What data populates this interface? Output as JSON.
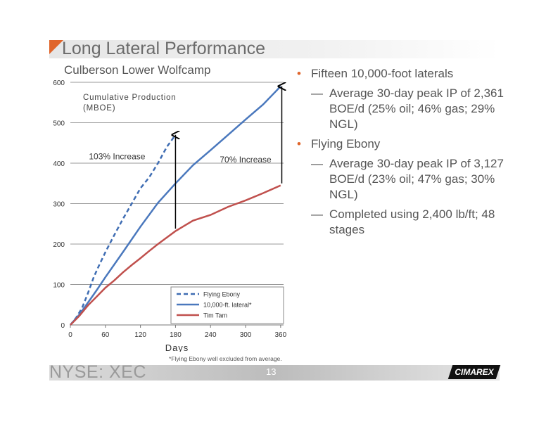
{
  "slide": {
    "title": "Long Lateral Performance",
    "subtitle": "Culberson Lower Wolfcamp",
    "ticker": "NYSE: XEC",
    "page_number": "13",
    "logo_text": "CIMAREX",
    "footnote": "*Flying Ebony well excluded from average.",
    "accent_color": "#e0652b"
  },
  "bullets": [
    {
      "text": "Fifteen 10,000-foot laterals",
      "subs": [
        "Average 30-day peak IP of 2,361 BOE/d (25% oil; 46% gas; 29% NGL)"
      ]
    },
    {
      "text": "Flying Ebony",
      "subs": [
        "Average 30-day peak IP of 3,127 BOE/d (23% oil; 47% gas; 30% NGL)",
        "Completed using 2,400 lb/ft; 48 stages"
      ]
    }
  ],
  "chart_data": {
    "type": "line",
    "ylabel": "Cumulative Production (MBOE)",
    "xlabel": "Days",
    "xlim": [
      0,
      365
    ],
    "ylim": [
      0,
      600
    ],
    "xticks": [
      0,
      60,
      120,
      180,
      240,
      300,
      360
    ],
    "yticks": [
      0,
      100,
      200,
      300,
      400,
      500,
      600
    ],
    "grid": "horizontal",
    "legend_position": "bottom-right",
    "series": [
      {
        "name": "Flying Ebony",
        "color": "#3f6db3",
        "dash": true,
        "points": [
          [
            0,
            0
          ],
          [
            10,
            18
          ],
          [
            20,
            42
          ],
          [
            30,
            78
          ],
          [
            40,
            118
          ],
          [
            50,
            150
          ],
          [
            60,
            180
          ],
          [
            75,
            222
          ],
          [
            90,
            262
          ],
          [
            105,
            300
          ],
          [
            120,
            338
          ],
          [
            135,
            365
          ],
          [
            150,
            400
          ],
          [
            165,
            440
          ],
          [
            180,
            470
          ]
        ]
      },
      {
        "name": "10,000-ft. lateral*",
        "color": "#4a78bd",
        "dash": false,
        "points": [
          [
            0,
            0
          ],
          [
            15,
            25
          ],
          [
            30,
            55
          ],
          [
            45,
            86
          ],
          [
            60,
            118
          ],
          [
            90,
            180
          ],
          [
            120,
            243
          ],
          [
            150,
            302
          ],
          [
            180,
            350
          ],
          [
            210,
            395
          ],
          [
            240,
            432
          ],
          [
            270,
            470
          ],
          [
            300,
            508
          ],
          [
            330,
            545
          ],
          [
            360,
            590
          ]
        ]
      },
      {
        "name": "Tim Tam",
        "color": "#c0504d",
        "dash": false,
        "points": [
          [
            0,
            0
          ],
          [
            15,
            22
          ],
          [
            30,
            48
          ],
          [
            45,
            70
          ],
          [
            60,
            92
          ],
          [
            75,
            110
          ],
          [
            90,
            130
          ],
          [
            105,
            148
          ],
          [
            120,
            165
          ],
          [
            135,
            183
          ],
          [
            150,
            200
          ],
          [
            165,
            216
          ],
          [
            180,
            232
          ],
          [
            195,
            245
          ],
          [
            210,
            258
          ],
          [
            240,
            272
          ],
          [
            270,
            292
          ],
          [
            300,
            308
          ],
          [
            330,
            326
          ],
          [
            360,
            345
          ]
        ]
      }
    ],
    "annotations": [
      {
        "text": "103% Increase",
        "x": 80,
        "y": 410
      },
      {
        "text": "70% Increase",
        "x": 300,
        "y": 402
      }
    ],
    "arrows": [
      {
        "x": 180,
        "y_from": 238,
        "y_to": 470
      },
      {
        "x": 362,
        "y_from": 350,
        "y_to": 590
      }
    ]
  }
}
